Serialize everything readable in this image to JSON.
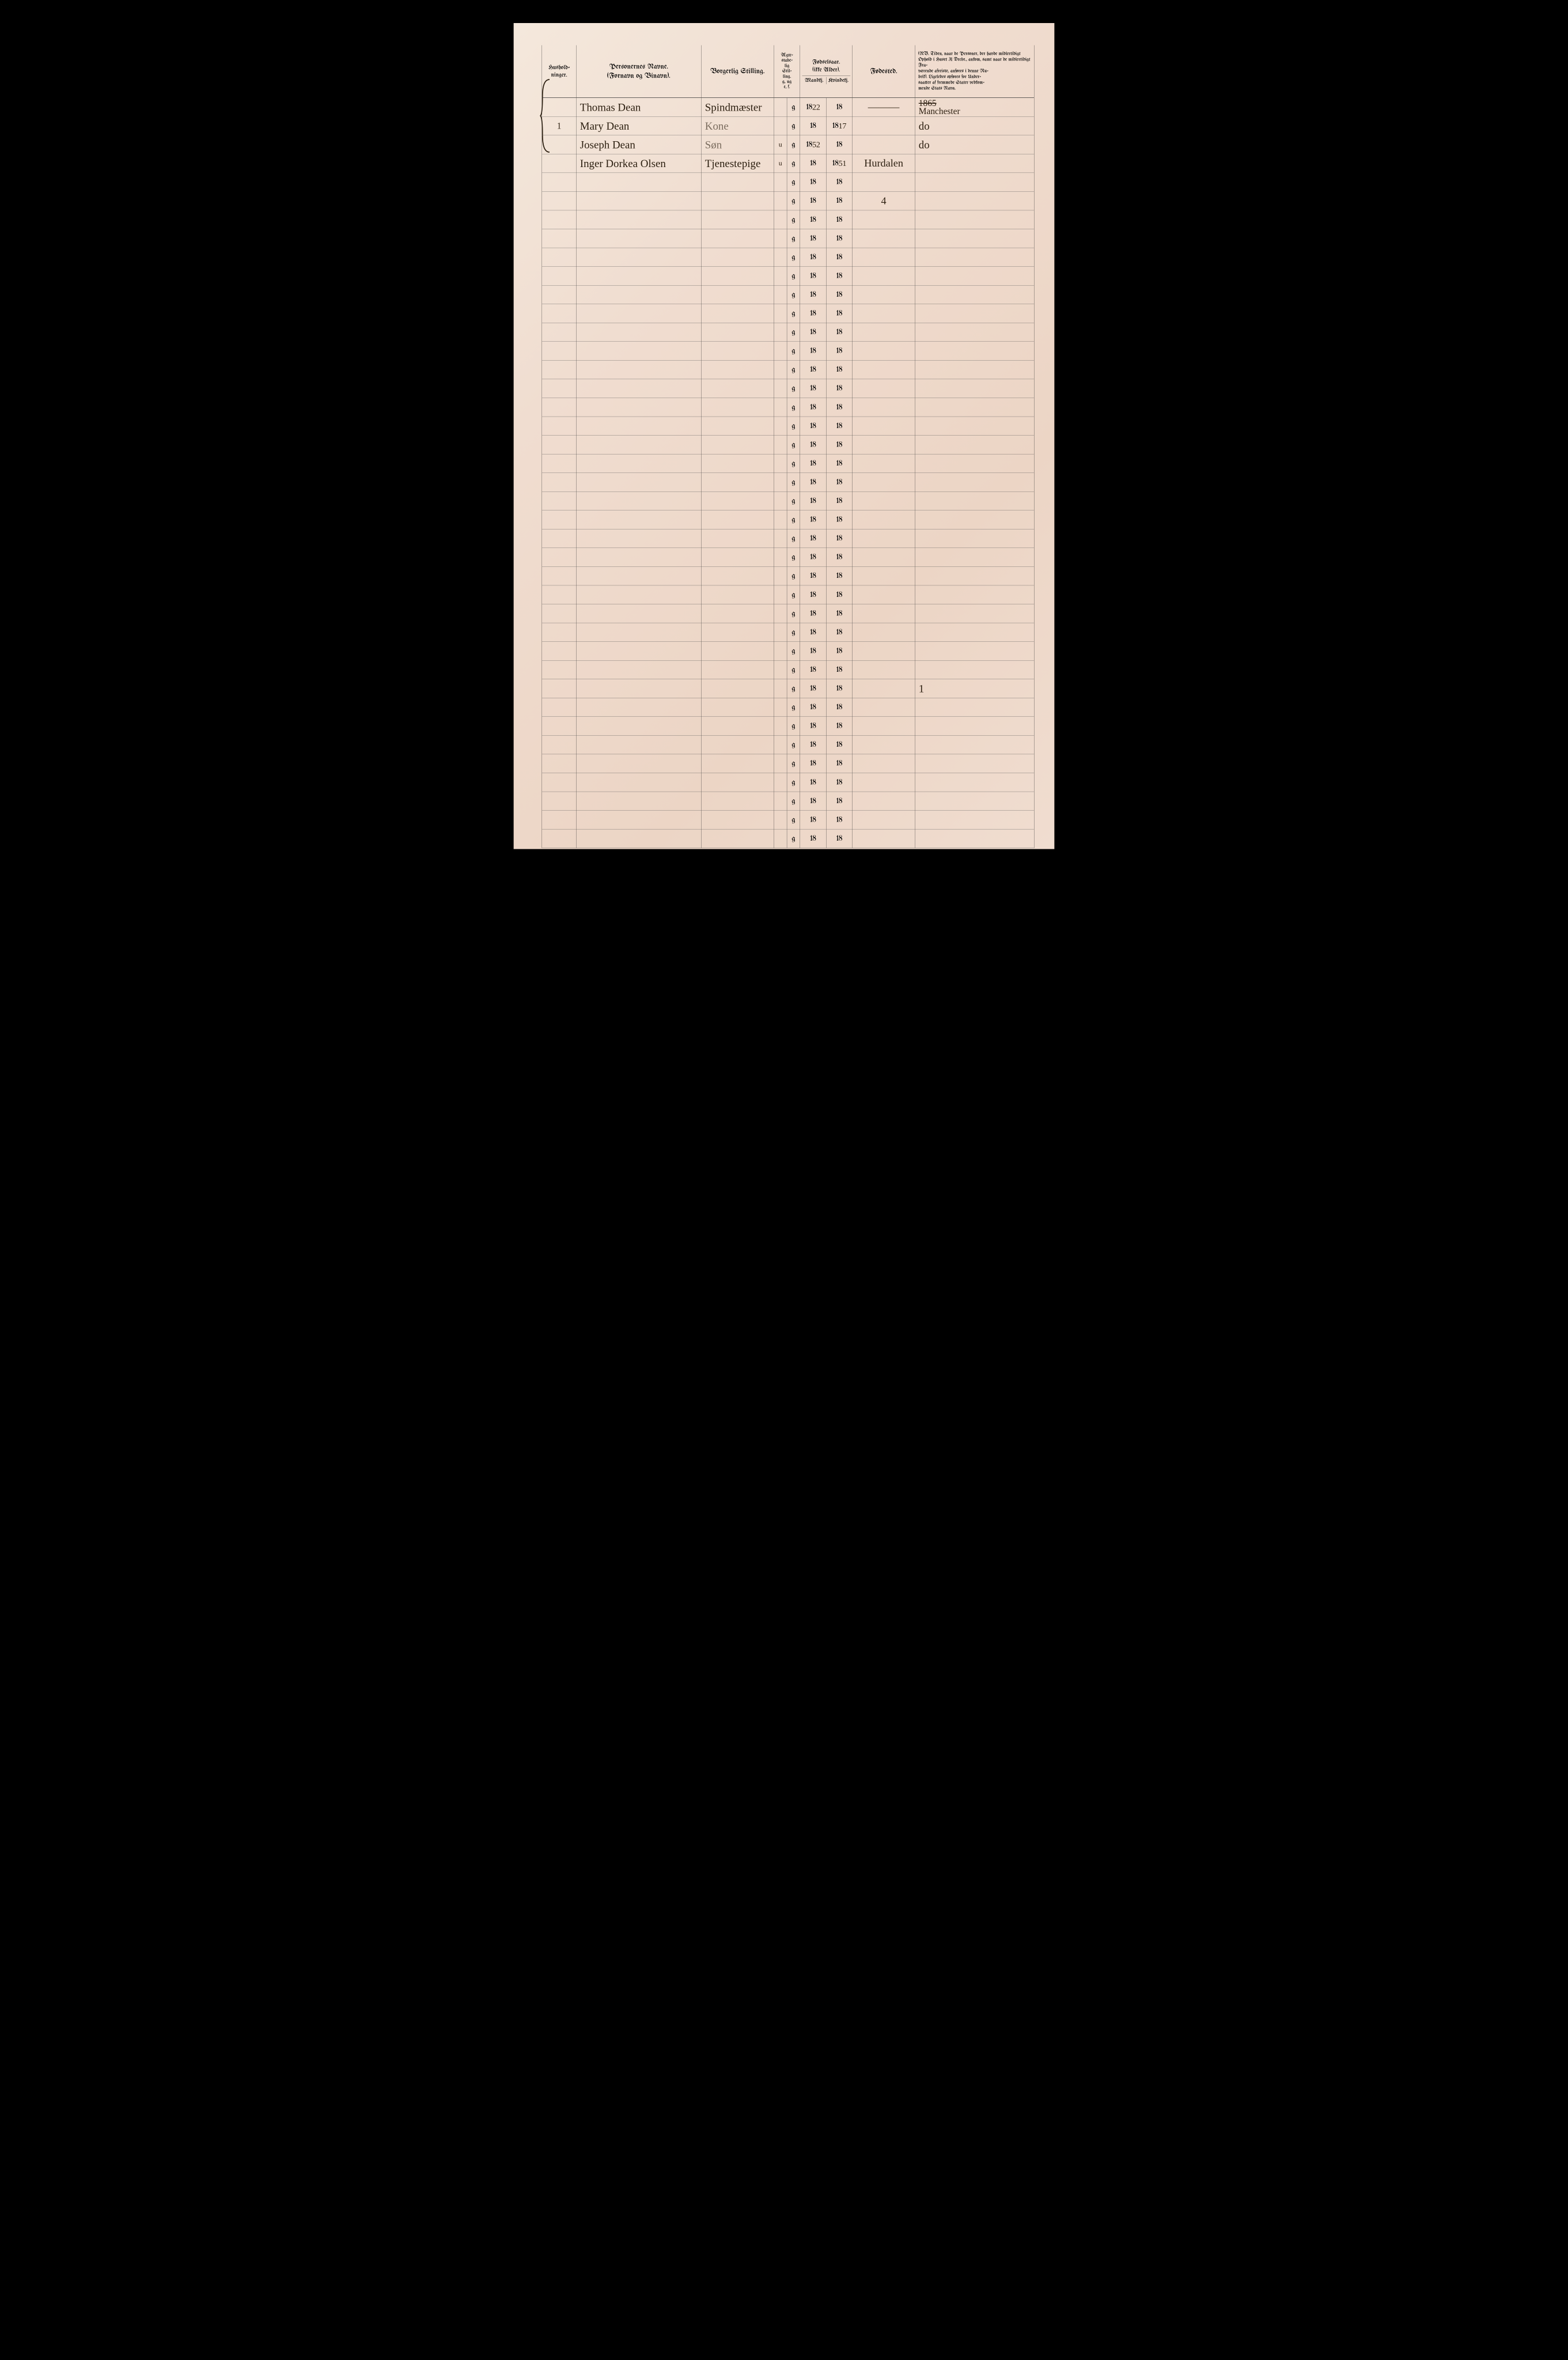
{
  "page": {
    "background": "#f0ddd0",
    "ink": "#2a2a2a",
    "handwriting_ink": "#2b1e0f"
  },
  "headers": {
    "husholdninger": "Hushold-\nninger.",
    "personernes_navne": "Personernes Navne.\n(Fornavn og Binavn).",
    "borgerlig_stilling": "Borgerlig Stilling.",
    "aegte": "Ægte-\nstabe-\nlig\nStil-\nling.\ng, ug\ne, f.",
    "fodselsaar": "Fødselsaar.\n(ikke Alder).",
    "fods_sub_m": "Mandkj.",
    "fods_sub_k": "Kvindekj.",
    "fodested": "Fødested.",
    "nb": "(NB. Tiden, naar de Personer, der havde midlertidigt Ophold i Huset 31 Decbr., ankom, samt naar de midlertidigt Fra-\nværende afreiste, anføres i denne Ru-\nbrik). Ligeledes opføres for Under-\nsaatter af fremmede Stater vedkom-\nmende Stats Navn."
  },
  "household_number": "1",
  "rows": [
    {
      "name": "Thomas Dean",
      "stilling": "Spindmæster",
      "aegte_l": "",
      "aegte_r": "g",
      "mand": "1822",
      "kvind": "18",
      "fodested": "———",
      "nb": "1865\nManchester",
      "nb_strike": true
    },
    {
      "name": "Mary Dean",
      "stilling": "Kone",
      "aegte_l": "",
      "aegte_r": "g",
      "mand": "18",
      "kvind": "1817",
      "fodested": "",
      "nb": "do"
    },
    {
      "name": "Joseph Dean",
      "stilling": "Søn",
      "aegte_l": "u",
      "aegte_r": "g",
      "mand": "1852",
      "kvind": "18",
      "fodested": "",
      "nb": "do"
    },
    {
      "name": "Inger Dorkea Olsen",
      "stilling": "Tjenestepige",
      "aegte_l": "u",
      "aegte_r": "g",
      "mand": "18",
      "kvind": "1851",
      "fodested": "Hurdalen",
      "nb": ""
    },
    {
      "name": "",
      "stilling": "",
      "aegte_l": "",
      "aegte_r": "g",
      "mand": "18",
      "kvind": "18",
      "fodested": "",
      "nb": ""
    },
    {
      "name": "",
      "stilling": "",
      "aegte_l": "",
      "aegte_r": "g",
      "mand": "18",
      "kvind": "18",
      "fodested": "4",
      "nb": ""
    },
    {
      "name": "",
      "stilling": "",
      "aegte_l": "",
      "aegte_r": "g",
      "mand": "18",
      "kvind": "18",
      "fodested": "",
      "nb": ""
    },
    {
      "name": "",
      "stilling": "",
      "aegte_l": "",
      "aegte_r": "g",
      "mand": "18",
      "kvind": "18",
      "fodested": "",
      "nb": ""
    },
    {
      "name": "",
      "stilling": "",
      "aegte_l": "",
      "aegte_r": "g",
      "mand": "18",
      "kvind": "18",
      "fodested": "",
      "nb": ""
    },
    {
      "name": "",
      "stilling": "",
      "aegte_l": "",
      "aegte_r": "g",
      "mand": "18",
      "kvind": "18",
      "fodested": "",
      "nb": ""
    },
    {
      "name": "",
      "stilling": "",
      "aegte_l": "",
      "aegte_r": "g",
      "mand": "18",
      "kvind": "18",
      "fodested": "",
      "nb": ""
    },
    {
      "name": "",
      "stilling": "",
      "aegte_l": "",
      "aegte_r": "g",
      "mand": "18",
      "kvind": "18",
      "fodested": "",
      "nb": ""
    },
    {
      "name": "",
      "stilling": "",
      "aegte_l": "",
      "aegte_r": "g",
      "mand": "18",
      "kvind": "18",
      "fodested": "",
      "nb": ""
    },
    {
      "name": "",
      "stilling": "",
      "aegte_l": "",
      "aegte_r": "g",
      "mand": "18",
      "kvind": "18",
      "fodested": "",
      "nb": ""
    },
    {
      "name": "",
      "stilling": "",
      "aegte_l": "",
      "aegte_r": "g",
      "mand": "18",
      "kvind": "18",
      "fodested": "",
      "nb": ""
    },
    {
      "name": "",
      "stilling": "",
      "aegte_l": "",
      "aegte_r": "g",
      "mand": "18",
      "kvind": "18",
      "fodested": "",
      "nb": ""
    },
    {
      "name": "",
      "stilling": "",
      "aegte_l": "",
      "aegte_r": "g",
      "mand": "18",
      "kvind": "18",
      "fodested": "",
      "nb": ""
    },
    {
      "name": "",
      "stilling": "",
      "aegte_l": "",
      "aegte_r": "g",
      "mand": "18",
      "kvind": "18",
      "fodested": "",
      "nb": ""
    },
    {
      "name": "",
      "stilling": "",
      "aegte_l": "",
      "aegte_r": "g",
      "mand": "18",
      "kvind": "18",
      "fodested": "",
      "nb": ""
    },
    {
      "name": "",
      "stilling": "",
      "aegte_l": "",
      "aegte_r": "g",
      "mand": "18",
      "kvind": "18",
      "fodested": "",
      "nb": ""
    },
    {
      "name": "",
      "stilling": "",
      "aegte_l": "",
      "aegte_r": "g",
      "mand": "18",
      "kvind": "18",
      "fodested": "",
      "nb": ""
    },
    {
      "name": "",
      "stilling": "",
      "aegte_l": "",
      "aegte_r": "g",
      "mand": "18",
      "kvind": "18",
      "fodested": "",
      "nb": ""
    },
    {
      "name": "",
      "stilling": "",
      "aegte_l": "",
      "aegte_r": "g",
      "mand": "18",
      "kvind": "18",
      "fodested": "",
      "nb": ""
    },
    {
      "name": "",
      "stilling": "",
      "aegte_l": "",
      "aegte_r": "g",
      "mand": "18",
      "kvind": "18",
      "fodested": "",
      "nb": ""
    },
    {
      "name": "",
      "stilling": "",
      "aegte_l": "",
      "aegte_r": "g",
      "mand": "18",
      "kvind": "18",
      "fodested": "",
      "nb": ""
    },
    {
      "name": "",
      "stilling": "",
      "aegte_l": "",
      "aegte_r": "g",
      "mand": "18",
      "kvind": "18",
      "fodested": "",
      "nb": ""
    },
    {
      "name": "",
      "stilling": "",
      "aegte_l": "",
      "aegte_r": "g",
      "mand": "18",
      "kvind": "18",
      "fodested": "",
      "nb": ""
    },
    {
      "name": "",
      "stilling": "",
      "aegte_l": "",
      "aegte_r": "g",
      "mand": "18",
      "kvind": "18",
      "fodested": "",
      "nb": ""
    },
    {
      "name": "",
      "stilling": "",
      "aegte_l": "",
      "aegte_r": "g",
      "mand": "18",
      "kvind": "18",
      "fodested": "",
      "nb": ""
    },
    {
      "name": "",
      "stilling": "",
      "aegte_l": "",
      "aegte_r": "g",
      "mand": "18",
      "kvind": "18",
      "fodested": "",
      "nb": ""
    },
    {
      "name": "",
      "stilling": "",
      "aegte_l": "",
      "aegte_r": "g",
      "mand": "18",
      "kvind": "18",
      "fodested": "",
      "nb": ""
    },
    {
      "name": "",
      "stilling": "",
      "aegte_l": "",
      "aegte_r": "g",
      "mand": "18",
      "kvind": "18",
      "fodested": "",
      "nb": "1"
    },
    {
      "name": "",
      "stilling": "",
      "aegte_l": "",
      "aegte_r": "g",
      "mand": "18",
      "kvind": "18",
      "fodested": "",
      "nb": ""
    },
    {
      "name": "",
      "stilling": "",
      "aegte_l": "",
      "aegte_r": "g",
      "mand": "18",
      "kvind": "18",
      "fodested": "",
      "nb": ""
    },
    {
      "name": "",
      "stilling": "",
      "aegte_l": "",
      "aegte_r": "g",
      "mand": "18",
      "kvind": "18",
      "fodested": "",
      "nb": ""
    },
    {
      "name": "",
      "stilling": "",
      "aegte_l": "",
      "aegte_r": "g",
      "mand": "18",
      "kvind": "18",
      "fodested": "",
      "nb": ""
    },
    {
      "name": "",
      "stilling": "",
      "aegte_l": "",
      "aegte_r": "g",
      "mand": "18",
      "kvind": "18",
      "fodested": "",
      "nb": ""
    },
    {
      "name": "",
      "stilling": "",
      "aegte_l": "",
      "aegte_r": "g",
      "mand": "18",
      "kvind": "18",
      "fodested": "",
      "nb": ""
    },
    {
      "name": "",
      "stilling": "",
      "aegte_l": "",
      "aegte_r": "g",
      "mand": "18",
      "kvind": "18",
      "fodested": "",
      "nb": ""
    },
    {
      "name": "",
      "stilling": "",
      "aegte_l": "",
      "aegte_r": "g",
      "mand": "18",
      "kvind": "18",
      "fodested": "",
      "nb": ""
    }
  ]
}
